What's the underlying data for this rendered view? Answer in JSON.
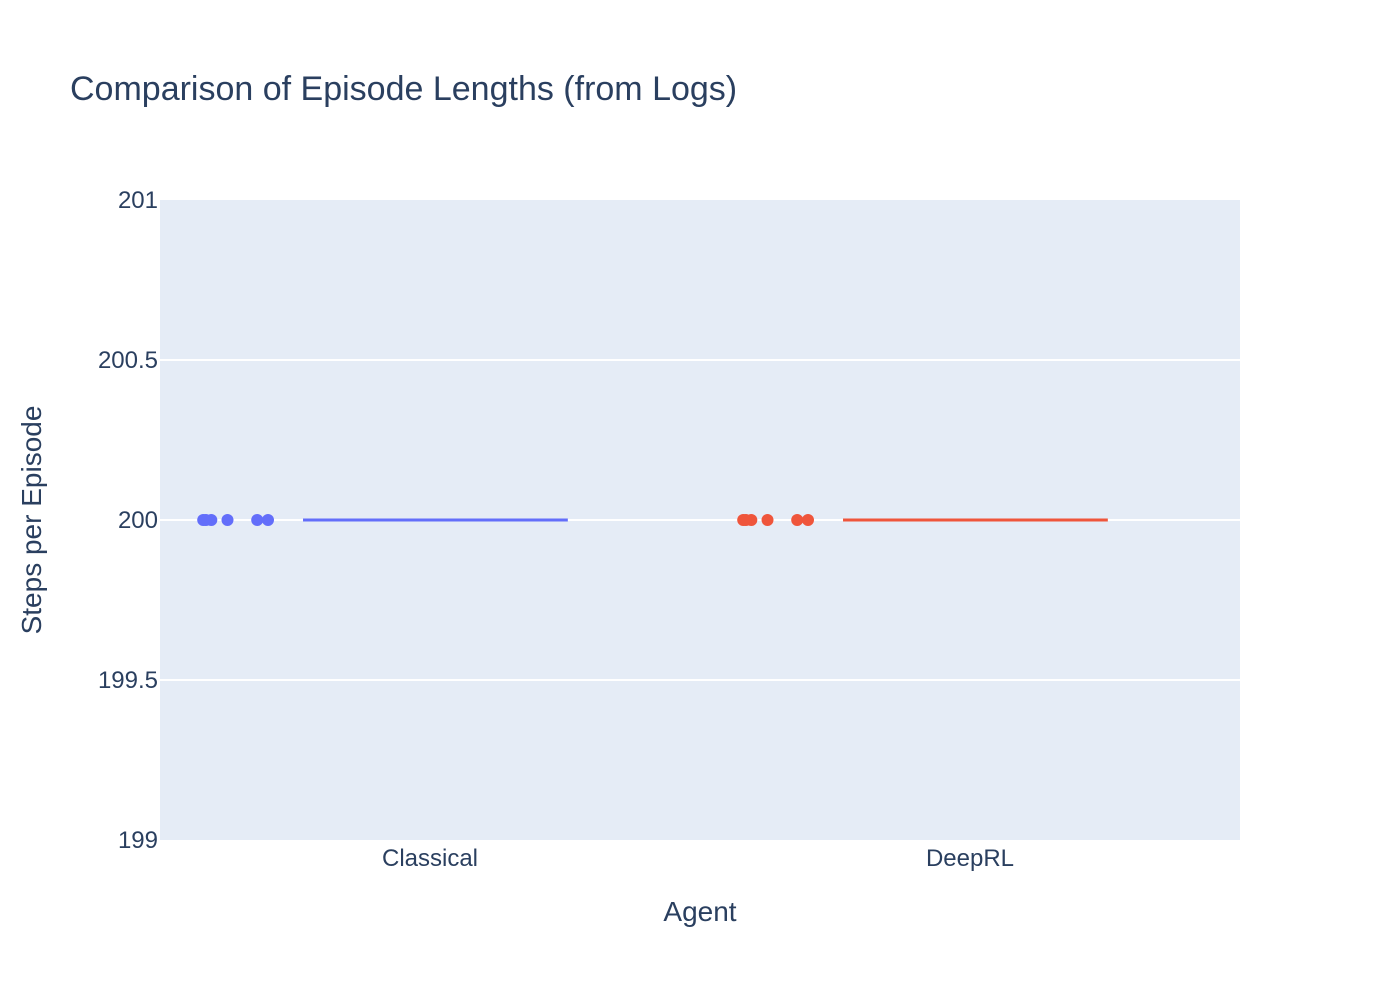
{
  "chart_data": {
    "type": "box",
    "title": "Comparison of Episode Lengths (from Logs)",
    "xlabel": "Agent",
    "ylabel": "Steps per Episode",
    "ylim": [
      199,
      201
    ],
    "yticks": [
      "199",
      "199.5",
      "200",
      "200.5",
      "201"
    ],
    "categories": [
      "Classical",
      "DeepRL"
    ],
    "series": [
      {
        "category": "Classical",
        "color": "#636efa",
        "points": [
          200,
          200,
          200,
          200,
          200,
          200
        ],
        "median": 200,
        "q1": 200,
        "q3": 200,
        "min": 200,
        "max": 200
      },
      {
        "category": "DeepRL",
        "color": "#ef553b",
        "points": [
          200,
          200,
          200,
          200,
          200,
          200
        ],
        "median": 200,
        "q1": 200,
        "q3": 200,
        "min": 200,
        "max": 200
      }
    ],
    "grid": true,
    "legend": false
  }
}
